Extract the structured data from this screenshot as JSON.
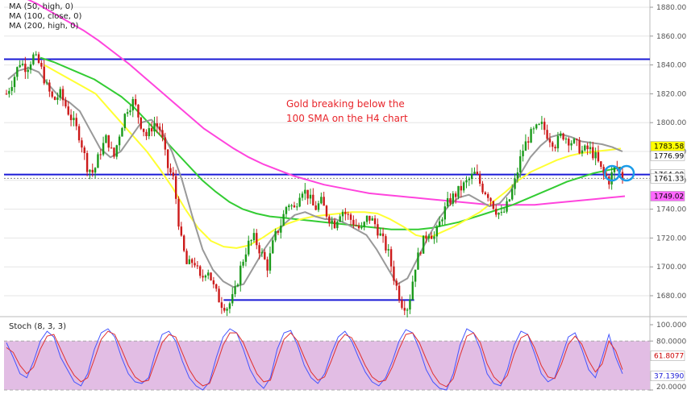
{
  "chart_data": [
    {
      "type": "candlestick",
      "indicators_legend": [
        "MA (50, high, 0)",
        "MA (100, close, 0)",
        "MA (200, high, 0)"
      ],
      "annotation_lines": [
        "Gold breaking below the",
        "100 SMA on the H4 chart"
      ],
      "ylim": [
        1660,
        1890
      ],
      "yticks": [
        1680,
        1700,
        1720,
        1740,
        1760,
        1780,
        1800,
        1820,
        1840,
        1860,
        1880
      ],
      "ytick_labels": [
        "1680.00",
        "1700.00",
        "1720.00",
        "1740.00",
        "1760.00",
        "1780.00",
        "1800.00",
        "1820.00",
        "1840.00",
        "1860.00",
        "1880.00"
      ],
      "price_badges": [
        {
          "label": "1783.58",
          "value": 1783.58,
          "color": "#ffff00",
          "text_color": "#000000"
        },
        {
          "label": "1776.99",
          "value": 1776.99,
          "color": "#ffffff",
          "text_color": "#000000"
        },
        {
          "label": "1764.08",
          "value": 1764.08,
          "color": "#ffffff",
          "text_color": "#000000"
        },
        {
          "label": "1761.33",
          "value": 1761.33,
          "color": "#ffffff",
          "text_color": "#000000"
        },
        {
          "label": "1749.02",
          "value": 1749.02,
          "color": "#ff66ff",
          "text_color": "#000000"
        }
      ],
      "horizontal_lines": [
        {
          "value": 1844,
          "x_from": 0,
          "x_to": 1,
          "color": "#1a1ad6"
        },
        {
          "value": 1764,
          "x_from": 0,
          "x_to": 1,
          "color": "#1a1ad6"
        },
        {
          "value": 1677,
          "x_from": 0.34,
          "x_to": 0.635,
          "color": "#1a1ad6"
        }
      ],
      "ma_colors": {
        "ma50": "#ffff33",
        "ma100": "#33cc33",
        "ma200": "#ff44dd",
        "fast": "#999999"
      },
      "candle_colors": {
        "up": "#1a9a1a",
        "down": "#cc1a1a"
      },
      "price_path": [
        1820,
        1830,
        1842,
        1838,
        1846,
        1840,
        1825,
        1815,
        1820,
        1810,
        1800,
        1790,
        1770,
        1765,
        1780,
        1790,
        1775,
        1795,
        1810,
        1815,
        1800,
        1790,
        1800,
        1795,
        1770,
        1760,
        1720,
        1700,
        1705,
        1690,
        1700,
        1685,
        1675,
        1672,
        1680,
        1700,
        1715,
        1720,
        1710,
        1700,
        1720,
        1730,
        1745,
        1740,
        1755,
        1750,
        1740,
        1745,
        1735,
        1730,
        1740,
        1735,
        1730,
        1725,
        1735,
        1730,
        1720,
        1710,
        1690,
        1675,
        1672,
        1700,
        1715,
        1725,
        1720,
        1735,
        1745,
        1750,
        1755,
        1760,
        1765,
        1755,
        1750,
        1740,
        1735,
        1745,
        1760,
        1780,
        1790,
        1795,
        1798,
        1790,
        1785,
        1792,
        1788,
        1785,
        1780,
        1782,
        1776,
        1765,
        1760,
        1770,
        1762
      ],
      "ma50_path": [
        1840,
        1835,
        1830,
        1825,
        1820,
        1810,
        1800,
        1790,
        1780,
        1768,
        1755,
        1740,
        1727,
        1718,
        1714,
        1713,
        1715,
        1720,
        1726,
        1730,
        1733,
        1735,
        1736,
        1737,
        1738,
        1738,
        1737,
        1733,
        1728,
        1722,
        1720,
        1724,
        1728,
        1733,
        1738,
        1745,
        1752,
        1760,
        1766,
        1770,
        1774,
        1777,
        1779,
        1780,
        1781,
        1782
      ],
      "ma100_path": [
        1845,
        1842,
        1838,
        1834,
        1830,
        1824,
        1818,
        1810,
        1800,
        1790,
        1780,
        1770,
        1760,
        1752,
        1745,
        1740,
        1737,
        1735,
        1734,
        1733,
        1732,
        1731,
        1730,
        1729,
        1728,
        1727,
        1726,
        1726,
        1726,
        1727,
        1729,
        1731,
        1734,
        1737,
        1740,
        1743,
        1747,
        1751,
        1755,
        1759,
        1762,
        1765,
        1767,
        1769
      ],
      "ma200_path": [
        1890,
        1887,
        1882,
        1876,
        1870,
        1864,
        1857,
        1849,
        1841,
        1832,
        1823,
        1814,
        1805,
        1796,
        1789,
        1782,
        1776,
        1771,
        1767,
        1763,
        1760,
        1757,
        1755,
        1753,
        1751,
        1750,
        1749,
        1748,
        1747,
        1746,
        1745,
        1744,
        1743,
        1743,
        1743,
        1743,
        1744,
        1745,
        1746,
        1747,
        1748,
        1749
      ],
      "fast_path": [
        1830,
        1836,
        1838,
        1835,
        1826,
        1818,
        1814,
        1808,
        1795,
        1782,
        1776,
        1780,
        1790,
        1800,
        1802,
        1794,
        1780,
        1760,
        1735,
        1712,
        1698,
        1690,
        1686,
        1688,
        1700,
        1712,
        1722,
        1730,
        1736,
        1738,
        1735,
        1733,
        1733,
        1730,
        1726,
        1722,
        1712,
        1700,
        1688,
        1692,
        1706,
        1720,
        1733,
        1742,
        1748,
        1750,
        1746,
        1742,
        1744,
        1752,
        1764,
        1776,
        1784,
        1790,
        1792,
        1790,
        1787,
        1786,
        1785,
        1783,
        1780
      ]
    },
    {
      "type": "line",
      "indicator_label": "Stoch (8, 3, 3)",
      "ylim": [
        20,
        100
      ],
      "ytick_labels": [
        "100.0000",
        "80.0000",
        "20.0000"
      ],
      "yticks": [
        100,
        80,
        20
      ],
      "band": [
        20,
        80
      ],
      "price_badges": [
        {
          "label": "61.8077",
          "value": 61.8077,
          "color": "#ffffff",
          "text_color": "#cc0000"
        },
        {
          "label": "37.1390",
          "value": 37.139,
          "color": "#ffffff",
          "text_color": "#1a1ad6"
        }
      ],
      "series": [
        {
          "color": "#4455ff",
          "values": [
            78,
            60,
            40,
            35,
            55,
            80,
            92,
            85,
            60,
            45,
            30,
            25,
            40,
            70,
            90,
            95,
            85,
            60,
            40,
            30,
            28,
            35,
            65,
            88,
            92,
            80,
            55,
            35,
            25,
            20,
            30,
            60,
            85,
            95,
            90,
            70,
            45,
            30,
            22,
            35,
            70,
            90,
            93,
            75,
            50,
            35,
            28,
            40,
            65,
            85,
            92,
            80,
            60,
            42,
            30,
            25,
            35,
            55,
            80,
            94,
            90,
            70,
            45,
            30,
            22,
            20,
            40,
            75,
            95,
            90,
            70,
            40,
            28,
            25,
            45,
            75,
            92,
            88,
            65,
            40,
            30,
            35,
            60,
            85,
            90,
            70,
            45,
            35,
            60,
            88,
            60,
            40
          ]
        },
        {
          "color": "#e03030",
          "values": [
            72,
            66,
            50,
            40,
            48,
            70,
            86,
            88,
            70,
            52,
            38,
            30,
            35,
            58,
            82,
            92,
            88,
            70,
            50,
            36,
            30,
            32,
            55,
            78,
            88,
            85,
            65,
            45,
            32,
            25,
            28,
            50,
            75,
            90,
            90,
            78,
            58,
            40,
            30,
            32,
            58,
            82,
            90,
            80,
            60,
            42,
            32,
            36,
            56,
            78,
            88,
            84,
            68,
            50,
            36,
            30,
            32,
            48,
            70,
            88,
            90,
            78,
            58,
            40,
            28,
            24,
            34,
            62,
            86,
            90,
            78,
            52,
            36,
            28,
            38,
            64,
            84,
            88,
            72,
            50,
            36,
            34,
            52,
            76,
            86,
            76,
            56,
            42,
            52,
            80,
            68,
            45
          ]
        }
      ]
    }
  ]
}
